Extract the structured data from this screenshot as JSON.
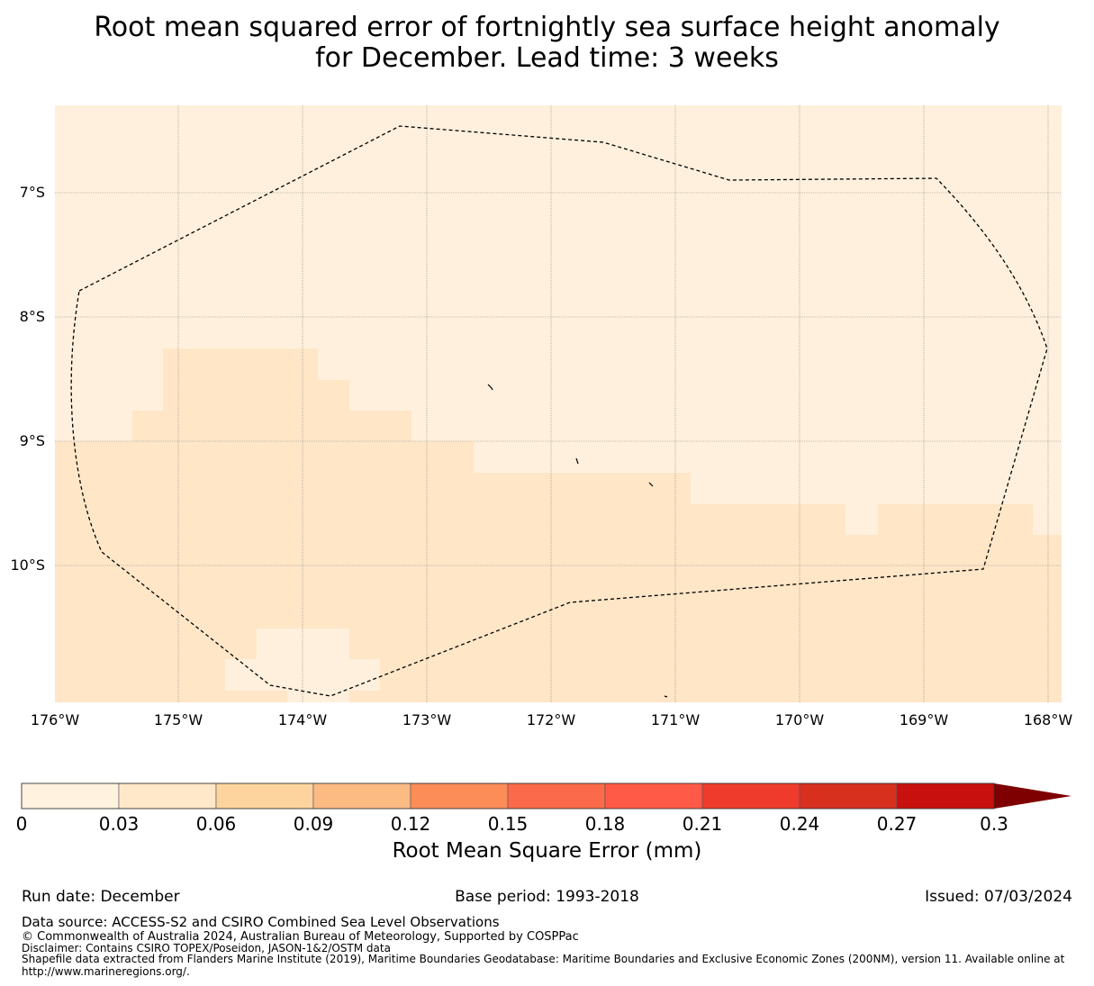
{
  "title": {
    "line1": "Root mean squared error of fortnightly sea surface height anomaly",
    "line2": "for December. Lead time: 3 weeks"
  },
  "map": {
    "lat_labels": [
      "7°S",
      "8°S",
      "9°S",
      "10°S"
    ],
    "lon_labels": [
      "176°W",
      "175°W",
      "174°W",
      "173°W",
      "172°W",
      "171°W",
      "170°W",
      "169°W",
      "168°W"
    ],
    "fill_colors": {
      "lowest_bin": "#fef0dc",
      "second_bin": "#fee6c7"
    },
    "boundary_style": "dashed"
  },
  "colorbar": {
    "tick_labels": [
      "0",
      "0.03",
      "0.06",
      "0.09",
      "0.12",
      "0.15",
      "0.18",
      "0.21",
      "0.24",
      "0.27",
      "0.3"
    ],
    "colors": [
      "#fff3e0",
      "#ffe8c9",
      "#fdd49e",
      "#fdbb84",
      "#fc8d59",
      "#fb6a4a",
      "#ff5a47",
      "#ef3b2c",
      "#d7301f",
      "#c8100f",
      "#b30000"
    ],
    "extend_color": "#7f0000",
    "label": "Root Mean Square Error (mm)"
  },
  "footer": {
    "run_date": "Run date: December",
    "base_period": "Base period: 1993-2018",
    "issued": "Issued: 07/03/2024",
    "data_source": "Data source: ACCESS-S2 and CSIRO Combined Sea Level Observations",
    "copyright": "© Commonwealth of Australia 2024, Australian Bureau of Meteorology, Supported by COSPPac",
    "disclaimer": "Disclaimer: Contains CSIRO TOPEX/Poseidon, JASON-1&2/OSTM data",
    "shapefile_line1": "Shapefile data extracted from Flanders Marine Institute (2019), Maritime Boundaries Geodatabase: Maritime Boundaries and Exclusive Economic Zones (200NM), version 11. Available online at",
    "shapefile_line2": "http://www.marineregions.org/."
  }
}
